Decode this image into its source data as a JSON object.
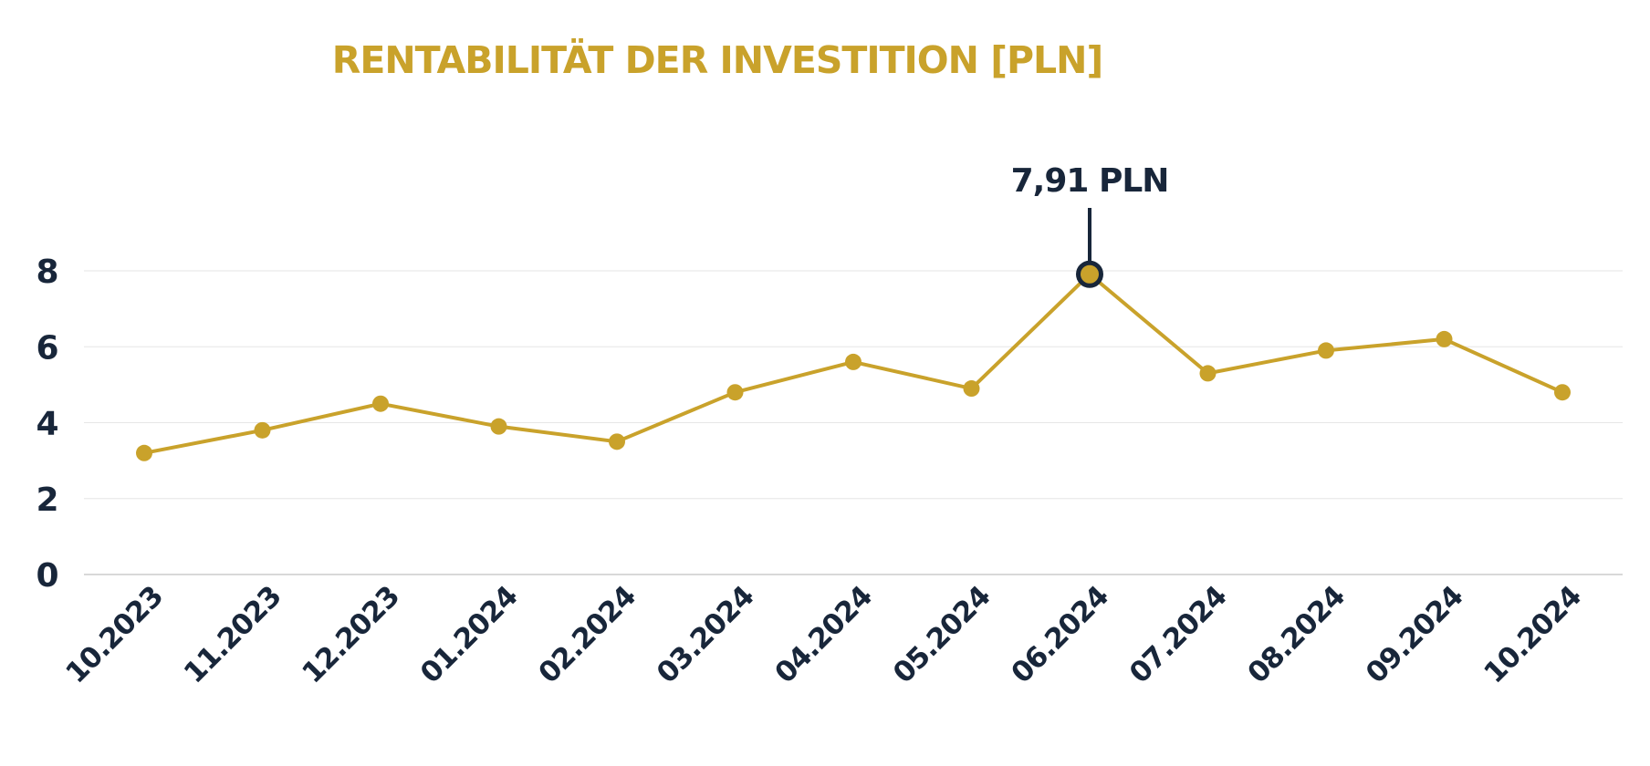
{
  "chart_data": {
    "type": "line",
    "title": "RENTABILITÄT DER INVESTITION [PLN]",
    "xlabel": "",
    "ylabel": "",
    "categories": [
      "10.2023",
      "11.2023",
      "12.2023",
      "01.2024",
      "02.2024",
      "03.2024",
      "04.2024",
      "05.2024",
      "06.2024",
      "07.2024",
      "08.2024",
      "09.2024",
      "10.2024"
    ],
    "series": [
      {
        "values": [
          3.2,
          3.8,
          4.5,
          3.9,
          3.5,
          4.8,
          5.6,
          4.9,
          7.91,
          5.3,
          5.9,
          6.2,
          4.8
        ]
      }
    ],
    "ylim": [
      0,
      8
    ],
    "yticks": [
      0,
      2,
      4,
      6,
      8
    ],
    "grid": true,
    "annotation": {
      "category": "06.2024",
      "label": "7,91 PLN"
    }
  },
  "colors": {
    "line": "#c9a22b",
    "text": "#18263a",
    "title": "#c9a22b",
    "grid": "#e6e6e6",
    "axis": "#cccccc"
  }
}
